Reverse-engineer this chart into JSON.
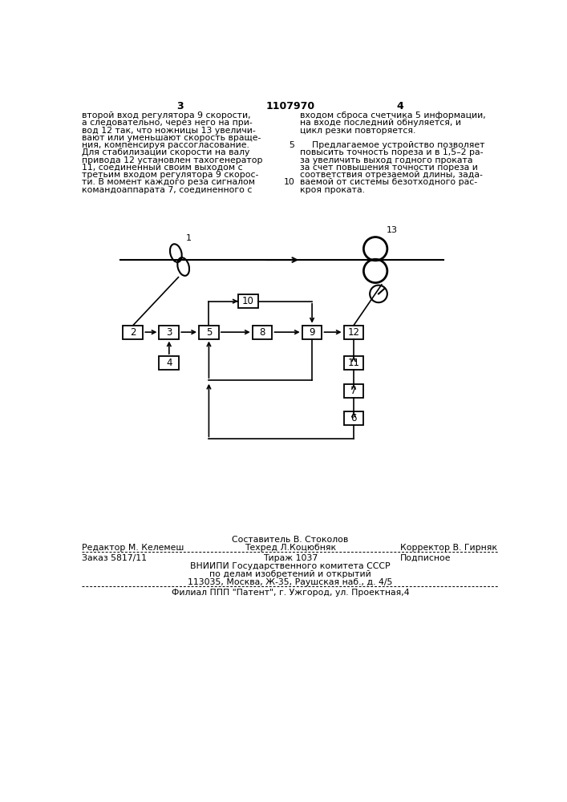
{
  "page_number_left": "3",
  "page_number_center": "1107970",
  "page_number_right": "4",
  "text_left": "второй вход регулятора 9 скорости,\nа следовательно, через него на при-\nвод 12 так, что ножницы 13 увеличи-\nвают или уменьшают скорость враще-\nния, компенсируя рассогласование.\nДля стабилизации скорости на валу\nпривода 12 установлен тахогенератор\n11, соединенный своим выходом с\nтретьим входом регулятора 9 скорос-\nти. В момент каждого реза сигналом\nкомандоаппарата 7, соединенного с",
  "text_right_lines": [
    {
      "indent": 0,
      "text": "входом сброса счетчика 5 информации,"
    },
    {
      "indent": 0,
      "text": "на входе последний обнуляется, и"
    },
    {
      "indent": 0,
      "text": "цикл резки повторяется."
    },
    {
      "indent": 0,
      "text": ""
    },
    {
      "indent": 1,
      "text": "Предлагаемое устройство позволяет"
    },
    {
      "indent": 0,
      "text": "повысить точность пореза и в 1,5–2 ра-"
    },
    {
      "indent": 0,
      "text": "за увеличить выход годного проката"
    },
    {
      "indent": 0,
      "text": "за счет повышения точности пореза и"
    },
    {
      "indent": 0,
      "text": "соответствия отрезаемой длины, зада-"
    },
    {
      "indent": 0,
      "text": "ваемой от системы безотходного рас-"
    },
    {
      "indent": 0,
      "text": "кроя проката."
    }
  ],
  "line_numbers_right": {
    "5": 4,
    "10": 9
  },
  "footer_line1_center": "Составитель В. Стоколов",
  "footer_line2_left": "Редактор М. Келемеш",
  "footer_line2_center": "Техред Л.Коцюбняк",
  "footer_line2_right": "Корректор В. Гирняк",
  "footer_line3_left": "Заказ 5817/11",
  "footer_line3_center": "Тираж 1037",
  "footer_line3_right": "Подписное",
  "footer_line4": "ВНИИПИ Государственного комитета СССР",
  "footer_line5": "по делам изобретений и открытий",
  "footer_line6": "113035, Москва, Ж-35, Раушская наб., д. 4/5",
  "footer_last": "Филиал ППП \"Патент\", г. Ужгород, ул. Проектная,4"
}
